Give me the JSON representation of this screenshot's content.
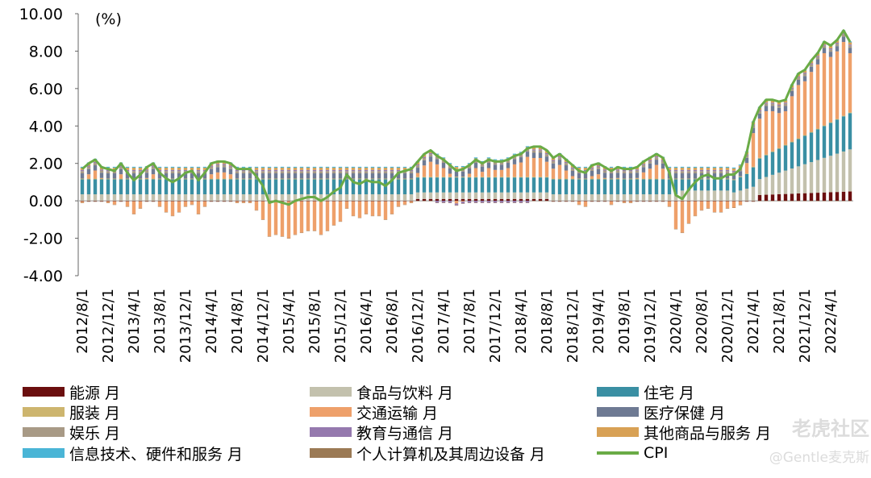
{
  "chart_data": {
    "type": "bar",
    "stacked": true,
    "unit_label": "(%)",
    "ylim": [
      -4,
      10
    ],
    "yticks": [
      "10.00",
      "8.00",
      "6.00",
      "4.00",
      "2.00",
      "0.00",
      "-2.00",
      "-4.00"
    ],
    "x_tick_labels": [
      "2012/8/1",
      "2012/12/1",
      "2013/4/1",
      "2013/8/1",
      "2013/12/1",
      "2014/4/1",
      "2014/8/1",
      "2014/12/1",
      "2015/4/1",
      "2015/8/1",
      "2015/12/1",
      "2016/4/1",
      "2016/8/1",
      "2016/12/1",
      "2017/4/1",
      "2017/8/1",
      "2017/12/1",
      "2018/4/1",
      "2018/8/1",
      "2018/12/1",
      "2019/4/1",
      "2019/8/1",
      "2019/12/1",
      "2020/4/1",
      "2020/8/1",
      "2020/12/1",
      "2021/4/1",
      "2021/8/1",
      "2021/12/1",
      "2022/4/1"
    ],
    "x_start": "2012/8/1",
    "month_count": 120,
    "legend": [
      {
        "name": "能源 月",
        "color": "#6b0f0f"
      },
      {
        "name": "食品与饮料 月",
        "color": "#c3c1ad"
      },
      {
        "name": "住宅 月",
        "color": "#3a8fa3"
      },
      {
        "name": "服装 月",
        "color": "#cdb56e"
      },
      {
        "name": "交通运输 月",
        "color": "#eea06a"
      },
      {
        "name": "医疗保健 月",
        "color": "#6e7a93"
      },
      {
        "name": "娱乐 月",
        "color": "#a89a86"
      },
      {
        "name": "教育与通信 月",
        "color": "#9579ae"
      },
      {
        "name": "其他商品与服务 月",
        "color": "#d8a155"
      },
      {
        "name": "信息技术、硬件和服务 月",
        "color": "#4ab5d6"
      },
      {
        "name": "个人计算机及其周边设备 月",
        "color": "#9b7a55"
      },
      {
        "name": "CPI",
        "color": "#6aab46"
      }
    ],
    "cpi_anchors": [
      [
        "2012/8/1",
        1.7
      ],
      [
        "2012/9/1",
        2.0
      ],
      [
        "2012/10/1",
        2.2
      ],
      [
        "2012/11/1",
        1.8
      ],
      [
        "2012/12/1",
        1.7
      ],
      [
        "2013/1/1",
        1.6
      ],
      [
        "2013/2/1",
        2.0
      ],
      [
        "2013/3/1",
        1.5
      ],
      [
        "2013/4/1",
        1.1
      ],
      [
        "2013/5/1",
        1.4
      ],
      [
        "2013/6/1",
        1.8
      ],
      [
        "2013/7/1",
        2.0
      ],
      [
        "2013/8/1",
        1.5
      ],
      [
        "2013/9/1",
        1.2
      ],
      [
        "2013/10/1",
        1.0
      ],
      [
        "2013/11/1",
        1.2
      ],
      [
        "2013/12/1",
        1.5
      ],
      [
        "2014/1/1",
        1.6
      ],
      [
        "2014/2/1",
        1.1
      ],
      [
        "2014/3/1",
        1.5
      ],
      [
        "2014/4/1",
        2.0
      ],
      [
        "2014/5/1",
        2.1
      ],
      [
        "2014/6/1",
        2.1
      ],
      [
        "2014/7/1",
        2.0
      ],
      [
        "2014/8/1",
        1.7
      ],
      [
        "2014/9/1",
        1.7
      ],
      [
        "2014/10/1",
        1.7
      ],
      [
        "2014/11/1",
        1.3
      ],
      [
        "2014/12/1",
        0.8
      ],
      [
        "2015/1/1",
        -0.1
      ],
      [
        "2015/2/1",
        0.0
      ],
      [
        "2015/3/1",
        -0.1
      ],
      [
        "2015/4/1",
        -0.2
      ],
      [
        "2015/5/1",
        0.0
      ],
      [
        "2015/6/1",
        0.1
      ],
      [
        "2015/7/1",
        0.2
      ],
      [
        "2015/8/1",
        0.2
      ],
      [
        "2015/9/1",
        0.0
      ],
      [
        "2015/10/1",
        0.2
      ],
      [
        "2015/11/1",
        0.5
      ],
      [
        "2015/12/1",
        0.7
      ],
      [
        "2016/1/1",
        1.4
      ],
      [
        "2016/2/1",
        1.0
      ],
      [
        "2016/3/1",
        0.9
      ],
      [
        "2016/4/1",
        1.1
      ],
      [
        "2016/5/1",
        1.0
      ],
      [
        "2016/6/1",
        1.0
      ],
      [
        "2016/7/1",
        0.8
      ],
      [
        "2016/8/1",
        1.1
      ],
      [
        "2016/9/1",
        1.5
      ],
      [
        "2016/10/1",
        1.6
      ],
      [
        "2016/11/1",
        1.7
      ],
      [
        "2016/12/1",
        2.1
      ],
      [
        "2017/1/1",
        2.5
      ],
      [
        "2017/2/1",
        2.7
      ],
      [
        "2017/3/1",
        2.4
      ],
      [
        "2017/4/1",
        2.2
      ],
      [
        "2017/5/1",
        1.9
      ],
      [
        "2017/6/1",
        1.6
      ],
      [
        "2017/7/1",
        1.7
      ],
      [
        "2017/8/1",
        1.9
      ],
      [
        "2017/9/1",
        2.2
      ],
      [
        "2017/10/1",
        2.0
      ],
      [
        "2017/11/1",
        2.2
      ],
      [
        "2017/12/1",
        2.1
      ],
      [
        "2018/1/1",
        2.1
      ],
      [
        "2018/2/1",
        2.2
      ],
      [
        "2018/3/1",
        2.4
      ],
      [
        "2018/4/1",
        2.5
      ],
      [
        "2018/5/1",
        2.8
      ],
      [
        "2018/6/1",
        2.9
      ],
      [
        "2018/7/1",
        2.9
      ],
      [
        "2018/8/1",
        2.7
      ],
      [
        "2018/9/1",
        2.3
      ],
      [
        "2018/10/1",
        2.5
      ],
      [
        "2018/11/1",
        2.2
      ],
      [
        "2018/12/1",
        1.9
      ],
      [
        "2019/1/1",
        1.6
      ],
      [
        "2019/2/1",
        1.5
      ],
      [
        "2019/3/1",
        1.9
      ],
      [
        "2019/4/1",
        2.0
      ],
      [
        "2019/5/1",
        1.8
      ],
      [
        "2019/6/1",
        1.6
      ],
      [
        "2019/7/1",
        1.8
      ],
      [
        "2019/8/1",
        1.7
      ],
      [
        "2019/9/1",
        1.7
      ],
      [
        "2019/10/1",
        1.8
      ],
      [
        "2019/11/1",
        2.1
      ],
      [
        "2019/12/1",
        2.3
      ],
      [
        "2020/1/1",
        2.5
      ],
      [
        "2020/2/1",
        2.3
      ],
      [
        "2020/3/1",
        1.5
      ],
      [
        "2020/4/1",
        0.3
      ],
      [
        "2020/5/1",
        0.1
      ],
      [
        "2020/6/1",
        0.6
      ],
      [
        "2020/7/1",
        1.0
      ],
      [
        "2020/8/1",
        1.3
      ],
      [
        "2020/9/1",
        1.4
      ],
      [
        "2020/10/1",
        1.2
      ],
      [
        "2020/11/1",
        1.2
      ],
      [
        "2020/12/1",
        1.4
      ],
      [
        "2021/1/1",
        1.4
      ],
      [
        "2021/2/1",
        1.7
      ],
      [
        "2021/3/1",
        2.6
      ],
      [
        "2021/4/1",
        4.2
      ],
      [
        "2021/5/1",
        5.0
      ],
      [
        "2021/6/1",
        5.4
      ],
      [
        "2021/7/1",
        5.4
      ],
      [
        "2021/8/1",
        5.3
      ],
      [
        "2021/9/1",
        5.4
      ],
      [
        "2021/10/1",
        6.2
      ],
      [
        "2021/11/1",
        6.8
      ],
      [
        "2021/12/1",
        7.0
      ],
      [
        "2022/1/1",
        7.5
      ],
      [
        "2022/2/1",
        7.9
      ],
      [
        "2022/3/1",
        8.5
      ],
      [
        "2022/4/1",
        8.3
      ],
      [
        "2022/5/1",
        8.6
      ],
      [
        "2022/6/1",
        9.1
      ],
      [
        "2022/7/1",
        8.5
      ]
    ]
  },
  "watermark": {
    "brand": "老虎社区",
    "handle": "@Gentle麦克斯"
  }
}
